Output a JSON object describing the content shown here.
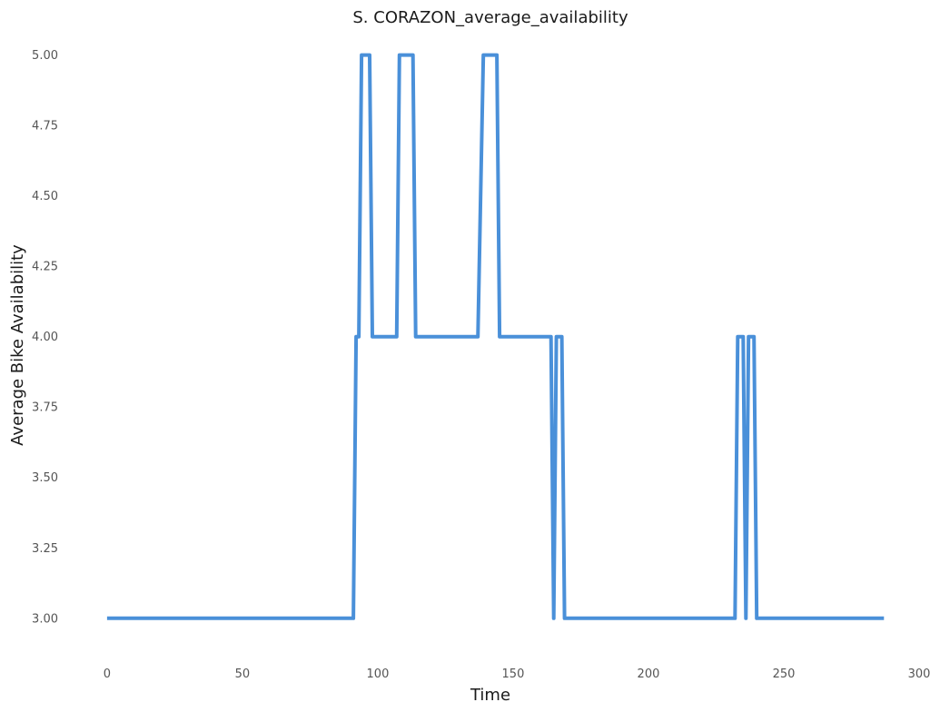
{
  "chart_data": {
    "type": "line",
    "title": "S.  CORAZON_average_availability",
    "xlabel": "Time",
    "ylabel": "Average Bike Availability",
    "xlim": [
      -4,
      300
    ],
    "ylim": [
      2.88,
      5.06
    ],
    "xticks": [
      0,
      50,
      100,
      150,
      200,
      250,
      300
    ],
    "yticks": [
      "3.00",
      "3.25",
      "3.50",
      "3.75",
      "4.00",
      "4.25",
      "4.50",
      "4.75",
      "5.00"
    ],
    "grid": false,
    "line_color": "#4a90d9",
    "series": [
      {
        "points": [
          [
            0,
            3
          ],
          [
            91,
            3
          ],
          [
            92,
            4
          ],
          [
            93,
            4
          ],
          [
            94,
            5
          ],
          [
            97,
            5
          ],
          [
            98,
            4
          ],
          [
            107,
            4
          ],
          [
            108,
            5
          ],
          [
            113,
            5
          ],
          [
            114,
            4
          ],
          [
            137,
            4
          ],
          [
            139,
            5
          ],
          [
            144,
            5
          ],
          [
            145,
            4
          ],
          [
            164,
            4
          ],
          [
            165,
            3
          ],
          [
            166,
            4
          ],
          [
            168,
            4
          ],
          [
            169,
            3
          ],
          [
            232,
            3
          ],
          [
            233,
            4
          ],
          [
            235,
            4
          ],
          [
            236,
            3
          ],
          [
            237,
            4
          ],
          [
            239,
            4
          ],
          [
            240,
            3
          ],
          [
            287,
            3
          ]
        ]
      }
    ]
  }
}
